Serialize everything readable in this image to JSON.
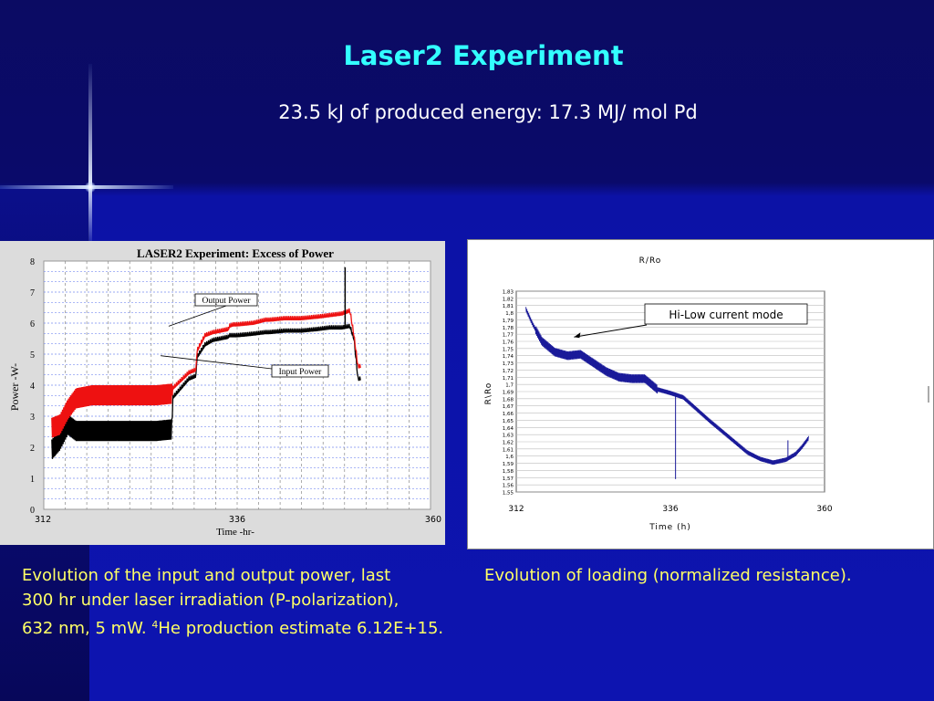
{
  "slide": {
    "title": "Laser2 Experiment",
    "subtitle": "23.5 kJ of produced energy: 17.3 MJ/ mol Pd",
    "caption_left_line1": "Evolution of the input and output power, last",
    "caption_left_line2": "300 hr under laser irradiation (P-polarization),",
    "caption_left_line3_prefix": "632 nm, 5 mW. ",
    "caption_left_sup": "4",
    "caption_left_line3_suffix": "He production estimate 6.12E+15.",
    "caption_right": "Evolution of loading (normalized resistance)."
  },
  "colors": {
    "title": "#33ffff",
    "caption": "#ffff66",
    "output_series": "#ee1111",
    "input_series": "#000000",
    "resistance_series": "#1a1a99"
  },
  "chart_data": [
    {
      "type": "line",
      "title": "LASER2 Experiment: Excess of Power",
      "xlabel": "Time -hr-",
      "ylabel": "Power -W-",
      "xlim": [
        312,
        360
      ],
      "ylim": [
        0,
        8
      ],
      "x_ticks": [
        312,
        336,
        360
      ],
      "y_ticks": [
        0,
        1,
        2,
        3,
        4,
        5,
        6,
        7,
        8
      ],
      "grid": true,
      "annotations": [
        {
          "text": "Output Power",
          "series": "Output Power",
          "target": [
            327.5,
            5.9
          ]
        },
        {
          "text": "Input Power",
          "series": "Input Power",
          "target": [
            326.5,
            4.95
          ]
        }
      ],
      "series": [
        {
          "name": "Output Power",
          "x": [
            313,
            314,
            315,
            316,
            318,
            320,
            323,
            326,
            327.9,
            328,
            330,
            330.9,
            331,
            332,
            333,
            334,
            334.9,
            335,
            335.5,
            336,
            338,
            339.5,
            340,
            342,
            344,
            346,
            347.5,
            349,
            350,
            350.5,
            351,
            351.3
          ],
          "values": [
            2.4,
            2.5,
            3.0,
            3.35,
            3.45,
            3.45,
            3.45,
            3.45,
            3.5,
            3.9,
            4.4,
            4.5,
            5.1,
            5.6,
            5.7,
            5.75,
            5.8,
            5.9,
            5.95,
            5.95,
            6.0,
            6.1,
            6.1,
            6.15,
            6.15,
            6.2,
            6.25,
            6.3,
            6.4,
            5.6,
            4.6,
            4.6
          ]
        },
        {
          "name": "Input Power",
          "x": [
            313,
            314,
            315,
            316,
            318,
            320,
            323,
            326,
            327.9,
            328,
            330,
            330.9,
            331,
            332,
            333,
            334,
            334.9,
            335,
            335.5,
            336,
            338,
            339.5,
            340,
            342,
            344,
            346,
            347.5,
            349,
            350,
            350.5,
            351,
            351.3
          ],
          "values": [
            1.7,
            2.0,
            2.5,
            2.3,
            2.3,
            2.3,
            2.3,
            2.3,
            2.35,
            3.6,
            4.2,
            4.3,
            4.9,
            5.3,
            5.45,
            5.5,
            5.55,
            5.6,
            5.6,
            5.6,
            5.65,
            5.7,
            5.7,
            5.75,
            5.75,
            5.8,
            5.85,
            5.85,
            5.9,
            5.5,
            4.2,
            4.2
          ]
        }
      ]
    },
    {
      "type": "line",
      "title": "R/Ro",
      "xlabel": "Time (h)",
      "ylabel": "R\\Ro",
      "xlim": [
        312,
        360
      ],
      "ylim": [
        1.55,
        1.83
      ],
      "x_ticks": [
        312,
        336,
        360
      ],
      "y_ticks": [
        "1,55",
        "1,56",
        "1,57",
        "1,58",
        "1,59",
        "1,6",
        "1,61",
        "1,62",
        "1,63",
        "1,64",
        "1,65",
        "1,66",
        "1,67",
        "1,68",
        "1,69",
        "1,7",
        "1,71",
        "1,72",
        "1,73",
        "1,74",
        "1,75",
        "1,76",
        "1,77",
        "1,78",
        "1,79",
        "1,8",
        "1,81",
        "1,82",
        "1,83"
      ],
      "grid": true,
      "annotations": [
        {
          "text": "Hi-Low current mode",
          "target": [
            321,
            1.766
          ]
        }
      ],
      "series": [
        {
          "name": "R/Ro",
          "x": [
            313.5,
            314.5,
            316,
            318,
            320,
            322,
            324,
            326,
            328,
            330,
            332,
            334,
            336,
            338,
            340,
            342,
            344,
            346,
            348,
            350,
            352,
            354,
            355.5,
            356.5,
            357.5
          ],
          "values": [
            1.805,
            1.785,
            1.76,
            1.745,
            1.74,
            1.742,
            1.73,
            1.718,
            1.71,
            1.708,
            1.708,
            1.693,
            1.688,
            1.682,
            1.666,
            1.65,
            1.635,
            1.62,
            1.605,
            1.596,
            1.591,
            1.595,
            1.603,
            1.613,
            1.625
          ]
        }
      ]
    }
  ]
}
